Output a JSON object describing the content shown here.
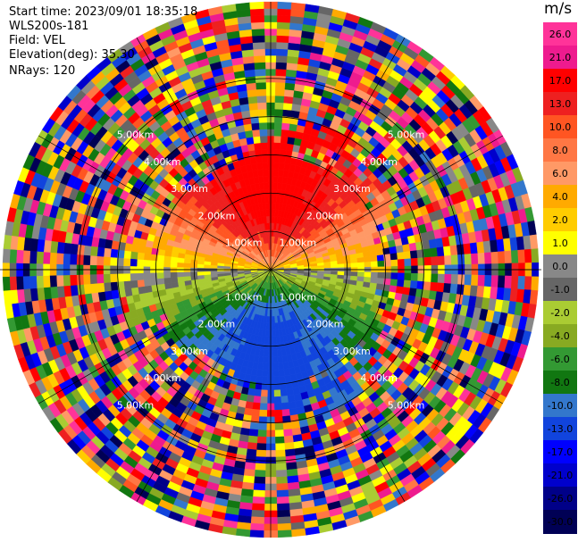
{
  "header": {
    "start_time": "Start time: 2023/09/01 18:35:18",
    "instrument": "WLS200s-181",
    "field": "Field: VEL",
    "elevation": "Elevation(deg): 35.30",
    "nrays": "NRays: 120"
  },
  "colorbar": {
    "unit": "m/s",
    "ticks": [
      "26.0",
      "21.0",
      "17.0",
      "13.0",
      "10.0",
      "8.0",
      "6.0",
      "4.0",
      "2.0",
      "1.0",
      "0.0",
      "-1.0",
      "-2.0",
      "-4.0",
      "-6.0",
      "-8.0",
      "-10.0",
      "-13.0",
      "-17.0",
      "-21.0",
      "-26.0",
      "-30.0"
    ],
    "colors": [
      "#ff3399",
      "#ee1b8e",
      "#ff0000",
      "#ee2020",
      "#ff5522",
      "#ff7744",
      "#ff9966",
      "#ffaa00",
      "#ffcc00",
      "#ffff00",
      "#888888",
      "#666666",
      "#aacc33",
      "#88aa22",
      "#339933",
      "#117711",
      "#3377cc",
      "#1144dd",
      "#0000ff",
      "#0000cc",
      "#000088",
      "#000055"
    ]
  },
  "chart_data": {
    "type": "heatmap",
    "title": "",
    "field": "VEL",
    "units": "m/s",
    "elevation_deg": 35.3,
    "nrays": 120,
    "range_rings_km": [
      1.0,
      2.0,
      3.0,
      4.0,
      5.0
    ],
    "ring_labels": [
      "1.00km",
      "2.00km",
      "3.00km",
      "4.00km",
      "5.00km"
    ],
    "max_range_km": 7.0,
    "pattern": "Radial velocity PPI: north sector positive (red/orange ~10-17 m/s), east-west band near 0 m/s (grey/yellow), south sector negative (blue ~-13 to -17 m/s); noisy random values beyond ~3.5 km"
  }
}
